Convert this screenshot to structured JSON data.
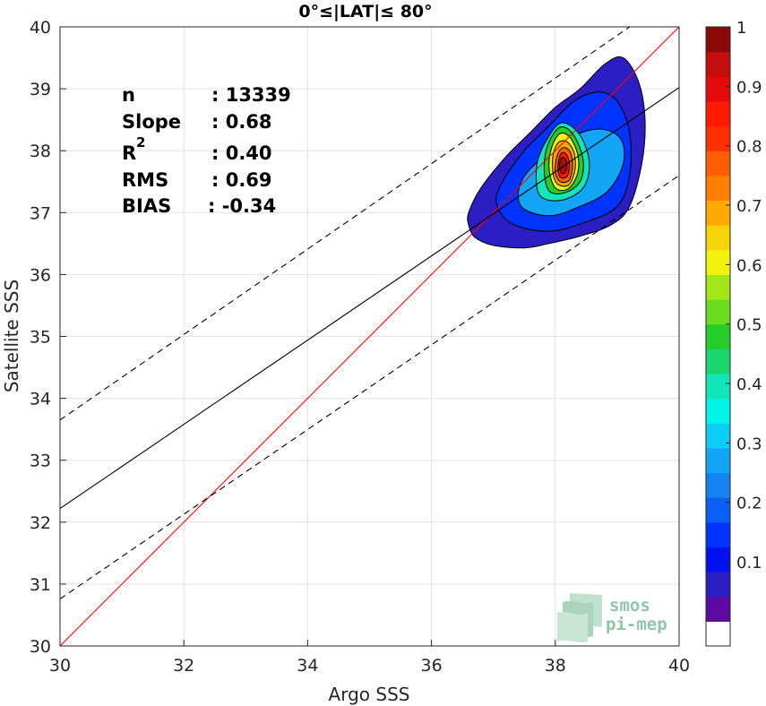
{
  "chart_data": {
    "type": "scatter",
    "subtype": "density contour",
    "title": "0°≤|LAT|≤ 80°",
    "xlabel": "Argo SSS",
    "ylabel": "Satellite SSS",
    "xlim": [
      30,
      40
    ],
    "ylim": [
      30,
      40
    ],
    "xticks": [
      "30",
      "32",
      "34",
      "36",
      "38",
      "40"
    ],
    "yticks": [
      "30",
      "31",
      "32",
      "33",
      "34",
      "35",
      "36",
      "37",
      "38",
      "39",
      "40"
    ],
    "grid": true,
    "stats": [
      {
        "label": "n",
        "value": ": 13339"
      },
      {
        "label": "Slope",
        "value": ": 0.68"
      },
      {
        "label": "R",
        "sup": "2",
        "value": ": 0.40"
      },
      {
        "label": "RMS",
        "value": ": 0.69"
      },
      {
        "label": "BIAS",
        "value": ": -0.34"
      }
    ],
    "lines": [
      {
        "name": "",
        "kind": "identity",
        "color": "#ff0000",
        "style": "solid",
        "points": [
          [
            30,
            30
          ],
          [
            40,
            40
          ]
        ]
      },
      {
        "name": "",
        "kind": "regression",
        "color": "#000000",
        "style": "solid",
        "points": [
          [
            30,
            32.22
          ],
          [
            40,
            39.02
          ]
        ]
      },
      {
        "name": "",
        "kind": "regression + RMS",
        "color": "#000000",
        "style": "dashed",
        "points": [
          [
            30,
            33.65
          ],
          [
            39.2,
            40
          ]
        ]
      },
      {
        "name": "",
        "kind": "regression - RMS",
        "color": "#000000",
        "style": "dashed",
        "points": [
          [
            30,
            30.76
          ],
          [
            40,
            37.6
          ]
        ]
      }
    ],
    "density": {
      "peak": [
        38.12,
        37.75
      ],
      "levels": [
        {
          "level": 0.05,
          "color": "#2b1ec2",
          "points": [
            [
              36.6,
              36.8
            ],
            [
              36.7,
              36.6
            ],
            [
              37.0,
              36.47
            ],
            [
              37.5,
              36.43
            ],
            [
              37.9,
              36.5
            ],
            [
              38.4,
              36.62
            ],
            [
              38.9,
              36.8
            ],
            [
              39.2,
              37.1
            ],
            [
              39.4,
              37.8
            ],
            [
              39.45,
              38.5
            ],
            [
              39.35,
              39.1
            ],
            [
              39.1,
              39.5
            ],
            [
              38.8,
              39.4
            ],
            [
              38.4,
              39.0
            ],
            [
              38.0,
              38.7
            ],
            [
              37.6,
              38.3
            ],
            [
              37.2,
              37.9
            ],
            [
              36.8,
              37.4
            ],
            [
              36.6,
              37.0
            ]
          ]
        },
        {
          "level": 0.1,
          "color": "#0033ff",
          "points": [
            [
              37.3,
              36.82
            ],
            [
              37.9,
              36.7
            ],
            [
              38.5,
              36.85
            ],
            [
              39.0,
              37.1
            ],
            [
              39.2,
              37.6
            ],
            [
              39.2,
              38.3
            ],
            [
              39.0,
              38.8
            ],
            [
              38.7,
              38.95
            ],
            [
              38.3,
              38.8
            ],
            [
              37.9,
              38.4
            ],
            [
              37.5,
              38.0
            ],
            [
              37.15,
              37.5
            ],
            [
              37.05,
              37.15
            ]
          ]
        },
        {
          "level": 0.3,
          "color": "#12a5f5",
          "points": [
            [
              37.45,
              37.1
            ],
            [
              37.9,
              36.95
            ],
            [
              38.4,
              37.1
            ],
            [
              38.85,
              37.35
            ],
            [
              39.1,
              37.8
            ],
            [
              39.05,
              38.2
            ],
            [
              38.7,
              38.35
            ],
            [
              38.2,
              38.2
            ],
            [
              37.8,
              37.9
            ],
            [
              37.45,
              37.5
            ]
          ]
        },
        {
          "level": 0.4,
          "color": "#12e6b8",
          "points": [
            [
              37.75,
              37.28
            ],
            [
              38.1,
              37.2
            ],
            [
              38.45,
              37.4
            ],
            [
              38.55,
              37.8
            ],
            [
              38.4,
              38.25
            ],
            [
              38.1,
              38.45
            ],
            [
              37.85,
              38.15
            ],
            [
              37.7,
              37.75
            ]
          ]
        },
        {
          "level": 0.5,
          "color": "#26cc29",
          "points": [
            [
              37.9,
              37.35
            ],
            [
              38.15,
              37.32
            ],
            [
              38.4,
              37.5
            ],
            [
              38.45,
              37.85
            ],
            [
              38.3,
              38.25
            ],
            [
              38.08,
              38.38
            ],
            [
              37.88,
              38.1
            ],
            [
              37.82,
              37.7
            ]
          ]
        },
        {
          "level": 0.6,
          "color": "#f2f20d",
          "points": [
            [
              38.0,
              37.4
            ],
            [
              38.2,
              37.38
            ],
            [
              38.35,
              37.6
            ],
            [
              38.37,
              37.9
            ],
            [
              38.25,
              38.2
            ],
            [
              38.08,
              38.28
            ],
            [
              37.94,
              38.05
            ],
            [
              37.9,
              37.7
            ]
          ]
        },
        {
          "level": 0.7,
          "color": "#ffaa00",
          "points": [
            [
              38.05,
              37.45
            ],
            [
              38.22,
              37.45
            ],
            [
              38.32,
              37.7
            ],
            [
              38.3,
              37.98
            ],
            [
              38.18,
              38.15
            ],
            [
              38.04,
              38.12
            ],
            [
              37.96,
              37.9
            ],
            [
              37.97,
              37.6
            ]
          ]
        },
        {
          "level": 0.8,
          "color": "#ff5e00",
          "points": [
            [
              38.08,
              37.5
            ],
            [
              38.22,
              37.52
            ],
            [
              38.28,
              37.75
            ],
            [
              38.24,
              37.98
            ],
            [
              38.13,
              38.05
            ],
            [
              38.03,
              37.92
            ],
            [
              38.0,
              37.65
            ]
          ]
        },
        {
          "level": 0.9,
          "color": "#ff1a00",
          "points": [
            [
              38.1,
              37.56
            ],
            [
              38.2,
              37.6
            ],
            [
              38.23,
              37.78
            ],
            [
              38.18,
              37.94
            ],
            [
              38.1,
              37.96
            ],
            [
              38.05,
              37.82
            ],
            [
              38.05,
              37.65
            ]
          ]
        },
        {
          "level": 1.0,
          "color": "#a01010",
          "points": [
            [
              38.11,
              37.63
            ],
            [
              38.17,
              37.66
            ],
            [
              38.19,
              37.78
            ],
            [
              38.15,
              37.88
            ],
            [
              38.1,
              37.88
            ],
            [
              38.07,
              37.78
            ],
            [
              38.08,
              37.68
            ]
          ]
        }
      ]
    },
    "colorbar": {
      "ticks": [
        "0.1",
        "0.2",
        "0.3",
        "0.4",
        "0.5",
        "0.6",
        "0.7",
        "0.8",
        "0.9",
        "1"
      ],
      "tick_values": [
        0.1,
        0.2,
        0.3,
        0.4,
        0.5,
        0.6,
        0.7,
        0.8,
        0.9,
        1.0
      ],
      "colors": [
        "#ffffff",
        "#5d0aa3",
        "#2b1ec2",
        "#0010f0",
        "#0033ff",
        "#0a5ff5",
        "#1383f0",
        "#12a5f5",
        "#0ccdf5",
        "#00f5e8",
        "#12e6b8",
        "#1ad66e",
        "#26cc29",
        "#6ade1e",
        "#a3e61a",
        "#f2f20d",
        "#f5d50a",
        "#ffaa00",
        "#ff8000",
        "#ff5e00",
        "#ff3000",
        "#ff1a00",
        "#e60a0a",
        "#c40e0e",
        "#8a0a0a"
      ]
    },
    "logo": {
      "line1": "smos",
      "line2": "pi-mep",
      "color": "#8fc6a8"
    }
  }
}
